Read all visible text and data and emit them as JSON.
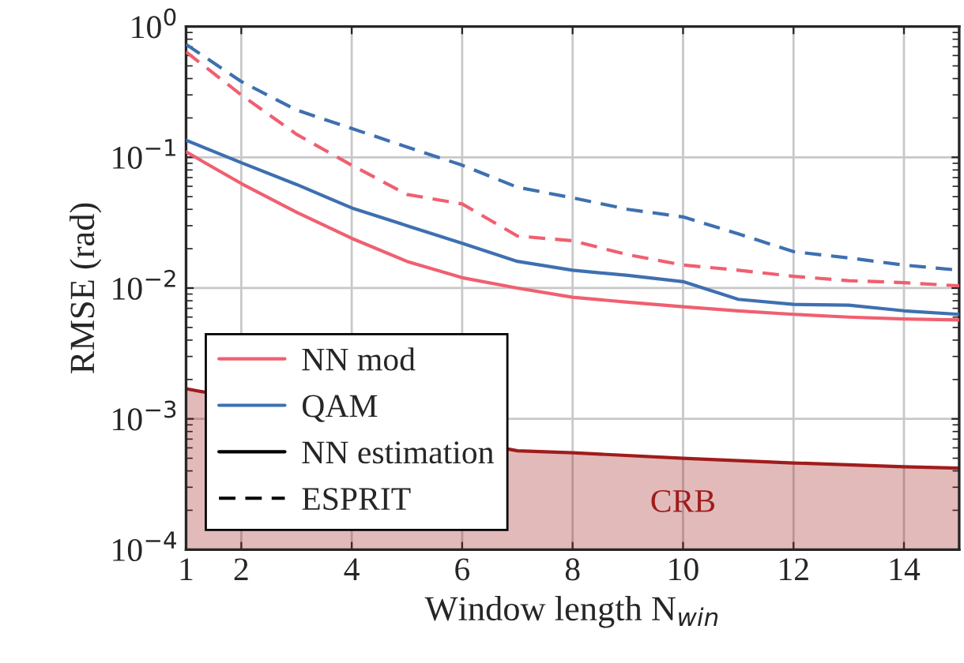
{
  "chart_data": {
    "type": "line",
    "xlabel": "Window length N$_{win}$",
    "ylabel": "RMSE (rad)",
    "x": [
      1,
      2,
      3,
      4,
      5,
      6,
      7,
      8,
      9,
      10,
      11,
      12,
      13,
      14,
      15
    ],
    "series": [
      {
        "name": "NN mod",
        "color": "#ef6070",
        "line_style": "solid",
        "values": [
          0.11,
          0.063,
          0.038,
          0.024,
          0.016,
          0.012,
          0.01,
          0.0085,
          0.0078,
          0.0072,
          0.0067,
          0.0063,
          0.006,
          0.0058,
          0.0057
        ]
      },
      {
        "name": "QAM",
        "color": "#3e70b0",
        "line_style": "solid",
        "values": [
          0.135,
          0.091,
          0.062,
          0.041,
          0.03,
          0.022,
          0.016,
          0.0137,
          0.0125,
          0.0112,
          0.0082,
          0.0075,
          0.0074,
          0.0067,
          0.0063
        ]
      },
      {
        "color": "#ef6070",
        "line_style": "dashed",
        "values": [
          0.64,
          0.3,
          0.15,
          0.087,
          0.052,
          0.044,
          0.025,
          0.023,
          0.018,
          0.015,
          0.0137,
          0.0123,
          0.0114,
          0.011,
          0.0104
        ]
      },
      {
        "color": "#3e70b0",
        "line_style": "dashed",
        "values": [
          0.73,
          0.38,
          0.23,
          0.166,
          0.12,
          0.087,
          0.059,
          0.049,
          0.04,
          0.035,
          0.026,
          0.019,
          0.017,
          0.015,
          0.0137
        ]
      },
      {
        "name": "NN estimation",
        "color": "#000000",
        "line_style": "solid",
        "values": [
          null,
          null,
          null,
          null,
          null,
          null,
          null,
          null,
          null,
          null,
          null,
          null,
          null,
          null,
          null
        ]
      },
      {
        "name": "ESPRIT",
        "color": "#000000",
        "line_style": "dashed",
        "values": [
          null,
          null,
          null,
          null,
          null,
          null,
          null,
          null,
          null,
          null,
          null,
          null,
          null,
          null,
          null
        ]
      },
      {
        "name": "CRB",
        "type": "area",
        "color": "#a01c1c",
        "x": [
          1,
          7,
          8,
          10,
          12,
          14,
          15
        ],
        "values": [
          0.0017,
          0.00057,
          0.00055,
          0.0005,
          0.00046,
          0.00043,
          0.00042
        ]
      }
    ],
    "log": "y",
    "xlim": [
      1,
      15
    ],
    "xticks": [
      1,
      2,
      4,
      6,
      8,
      10,
      12,
      14
    ],
    "ylim": [
      0.0001,
      1
    ],
    "yticks": [
      {
        "value": 0.0001,
        "label": "10$^{−4}$"
      },
      {
        "value": 0.001,
        "label": "10$^{−3}$"
      },
      {
        "value": 0.01,
        "label": "10$^{−2}$"
      },
      {
        "value": 0.1,
        "label": "10$^{−1}$"
      },
      {
        "value": 1,
        "label": "10$^{0}$"
      }
    ],
    "grid": true,
    "legend": "bottom left"
  }
}
